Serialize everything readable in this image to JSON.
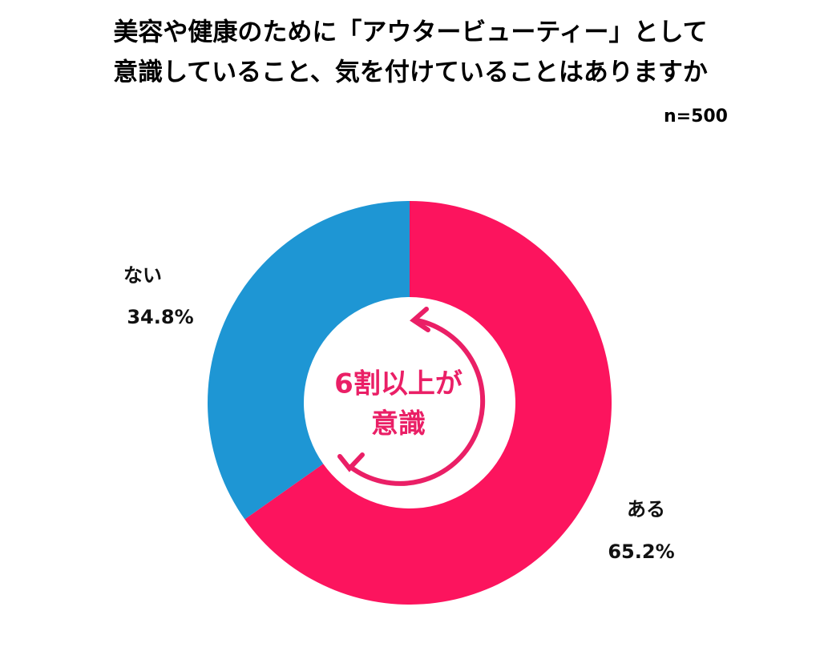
{
  "chart_data": {
    "type": "pie",
    "title": [
      "美容や健康のために「アウタービューティー」として",
      "意識していること、気を付けていることはありますか"
    ],
    "subtitle": "n=500",
    "categories": [
      "ある",
      "ない"
    ],
    "values": [
      65.2,
      34.8
    ],
    "value_labels": [
      "65.2%",
      "34.8%"
    ],
    "colors": [
      "#fc145e",
      "#1e96d4"
    ],
    "annotation": [
      "6割以上が",
      "意識"
    ]
  }
}
